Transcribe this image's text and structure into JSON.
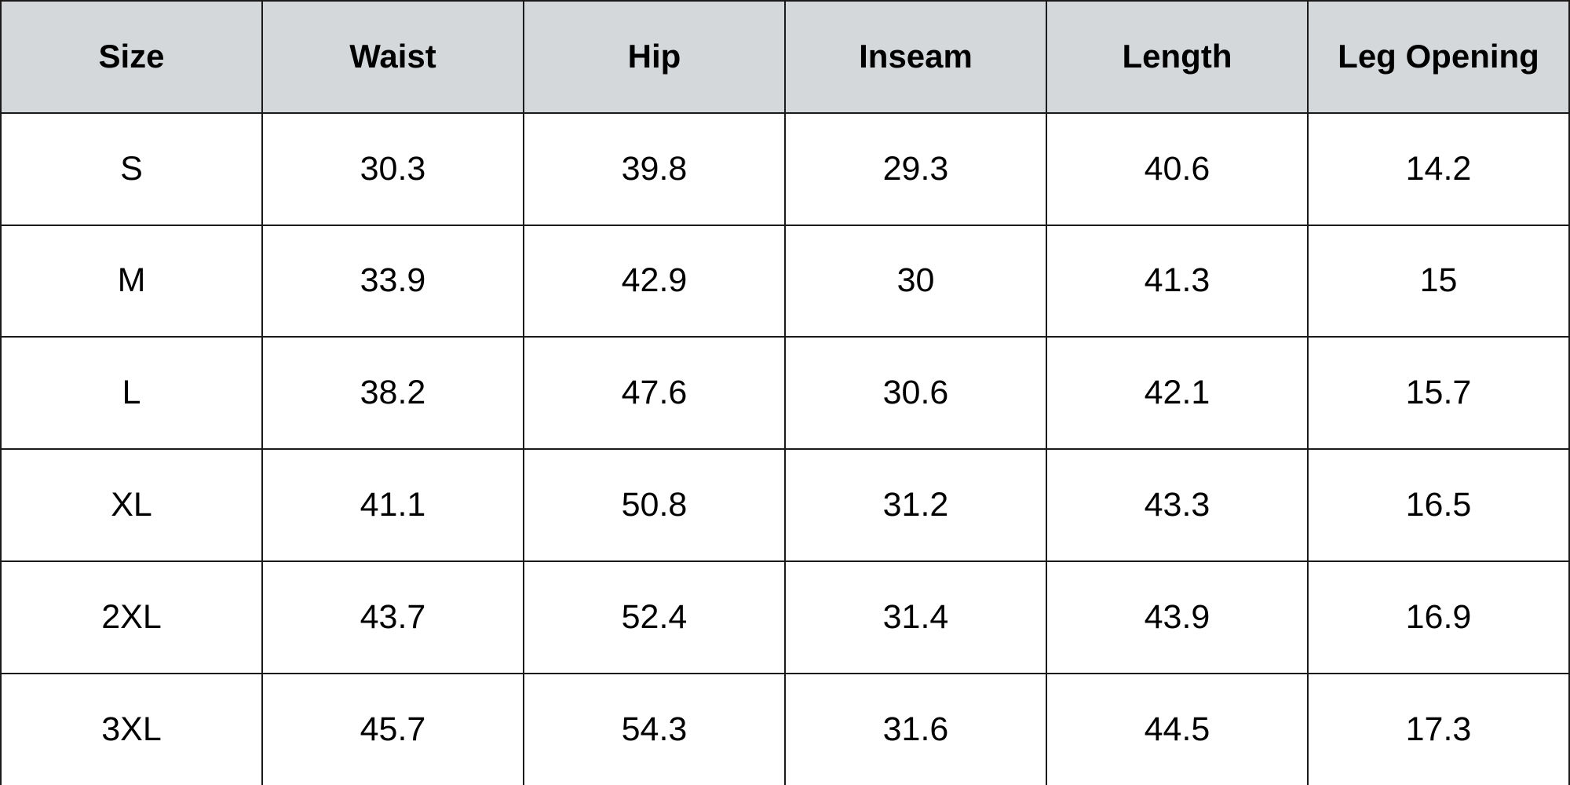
{
  "table": {
    "header": [
      "Size",
      "Waist",
      "Hip",
      "Inseam",
      "Length",
      "Leg Opening"
    ],
    "rows": [
      [
        "S",
        30.3,
        39.8,
        29.3,
        40.6,
        14.2
      ],
      [
        "M",
        33.9,
        42.9,
        30,
        41.3,
        15
      ],
      [
        "L",
        38.2,
        47.6,
        30.6,
        42.1,
        15.7
      ],
      [
        "XL",
        41.1,
        50.8,
        31.2,
        43.3,
        16.5
      ],
      [
        "2XL",
        43.7,
        52.4,
        31.4,
        43.9,
        16.9
      ],
      [
        "3XL",
        45.7,
        54.3,
        31.6,
        44.5,
        17.3
      ]
    ]
  }
}
